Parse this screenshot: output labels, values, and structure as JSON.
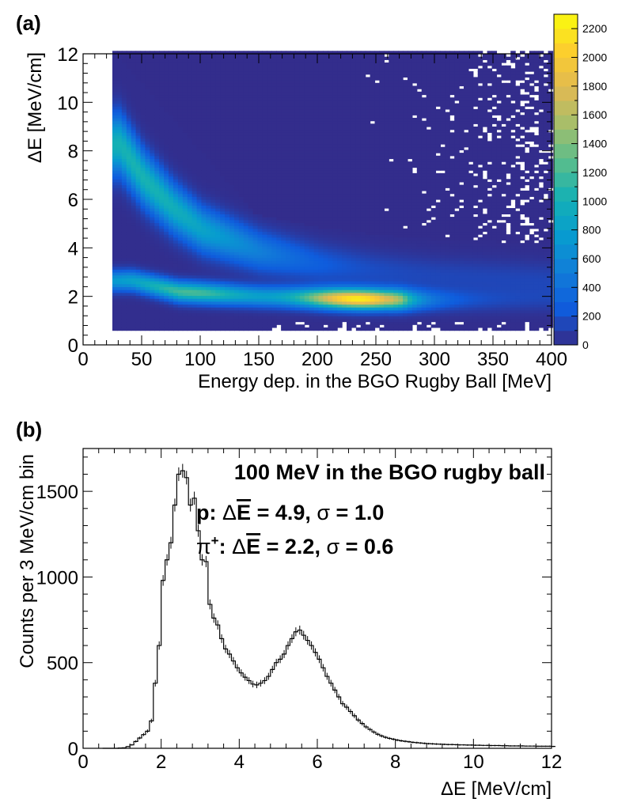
{
  "panels": {
    "a_label": "(a)",
    "b_label": "(b)"
  },
  "chart_data": [
    {
      "type": "heatmap",
      "xlabel": "Energy dep. in the BGO Rugby Ball [MeV]",
      "ylabel": "ΔE [MeV/cm]",
      "xlim": [
        0,
        400
      ],
      "ylim": [
        0,
        12
      ],
      "xticks": [
        0,
        50,
        100,
        150,
        200,
        250,
        300,
        350,
        400
      ],
      "yticks": [
        0,
        2,
        4,
        6,
        8,
        10,
        12
      ],
      "colorbar": {
        "range": [
          0,
          2300
        ],
        "ticks": [
          0,
          200,
          400,
          600,
          800,
          1000,
          1200,
          1400,
          1600,
          1800,
          2000,
          2200
        ]
      },
      "data_x_range": [
        25,
        400
      ],
      "data_y_min": 0.6,
      "bands": [
        {
          "particle": "proton",
          "points": [
            [
              30,
              8.2
            ],
            [
              50,
              6.8
            ],
            [
              75,
              5.6
            ],
            [
              100,
              4.7
            ],
            [
              150,
              3.8
            ],
            [
              200,
              3.3
            ],
            [
              250,
              3.0
            ],
            [
              300,
              2.8
            ],
            [
              350,
              2.7
            ],
            [
              400,
              2.6
            ]
          ]
        },
        {
          "particle": "pion",
          "peak": [
            232,
            1.85
          ],
          "points": [
            [
              40,
              2.6
            ],
            [
              80,
              2.15
            ],
            [
              150,
              1.95
            ],
            [
              230,
              1.85
            ],
            [
              300,
              1.8
            ],
            [
              400,
              1.8
            ]
          ]
        }
      ]
    },
    {
      "type": "histogram",
      "title": "100 MeV in the BGO rugby ball",
      "annotations": {
        "p_prefix": "p: ",
        "pi_prefix": "π",
        "pi_sup": "+",
        "colon": ": ",
        "delta": "Δ",
        "ebar": "E",
        "p_mean": " = 4.9, ",
        "pi_mean": " = 2.2, ",
        "sigma": "σ",
        "p_sigma": " = 1.0",
        "pi_sigma": " = 0.6"
      },
      "xlabel": "ΔE [MeV/cm]",
      "ylabel": "Counts per 3 MeV/cm bin",
      "xlim": [
        0,
        12
      ],
      "ylim": [
        0,
        1750
      ],
      "xticks": [
        0,
        2,
        4,
        6,
        8,
        10,
        12
      ],
      "yticks": [
        0,
        500,
        1000,
        1500
      ],
      "bin_width": 0.1,
      "x_start": 0.5,
      "values": [
        0,
        0,
        0,
        0,
        2,
        3,
        10,
        20,
        40,
        60,
        80,
        100,
        160,
        380,
        600,
        980,
        1100,
        1200,
        1420,
        1600,
        1620,
        1580,
        1420,
        1460,
        1270,
        1100,
        1090,
        840,
        760,
        720,
        640,
        580,
        550,
        510,
        470,
        440,
        415,
        395,
        375,
        370,
        380,
        395,
        420,
        460,
        500,
        520,
        550,
        600,
        640,
        680,
        690,
        660,
        630,
        600,
        560,
        520,
        470,
        420,
        380,
        340,
        300,
        260,
        240,
        215,
        190,
        165,
        145,
        125,
        110,
        95,
        82,
        72,
        64,
        58,
        53,
        48,
        44,
        41,
        38,
        35,
        33,
        31,
        29,
        27,
        26,
        25,
        24,
        23,
        22,
        22,
        21,
        20,
        20,
        19,
        19,
        18,
        18,
        17,
        17,
        16,
        16,
        16,
        15,
        15,
        14,
        14,
        14,
        14,
        13,
        13,
        13,
        12,
        12,
        12,
        12,
        11
      ]
    }
  ]
}
